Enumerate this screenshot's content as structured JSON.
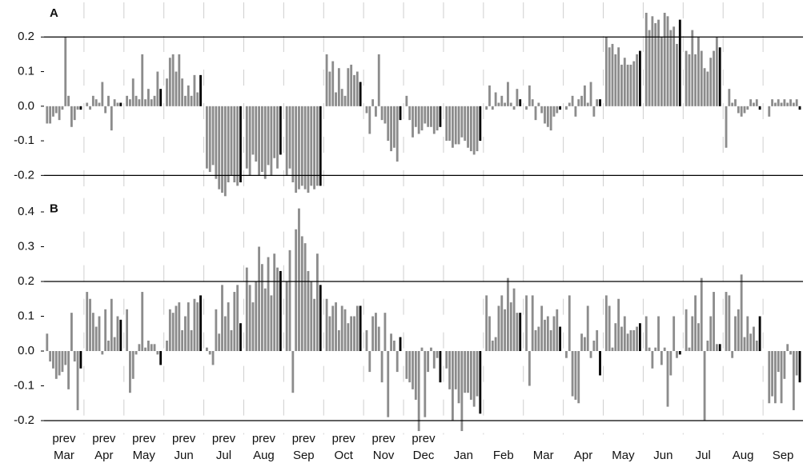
{
  "chart_data": [
    {
      "type": "bar",
      "title": "A",
      "ylim": [
        -0.25,
        0.3
      ],
      "yticks": [
        -0.2,
        -0.1,
        {
          "value": 0,
          "label": "0.0"
        },
        0.1,
        0.2
      ],
      "reference_lines": [
        -0.2,
        0.2
      ],
      "series": [
        {
          "color": "#8c8c8c",
          "values": [
            [
              -0.05,
              -0.05,
              -0.03,
              -0.02,
              -0.04,
              -0.01,
              0.2,
              0.03,
              -0.06,
              -0.04,
              -0.01
            ],
            [
              0.01,
              -0.01,
              0.03,
              0.02,
              0.01,
              0.07,
              -0.02,
              0.03,
              -0.07,
              0.02,
              0.01
            ],
            [
              0.03,
              0.02,
              0.08,
              0.03,
              0.02,
              0.15,
              0.02,
              0.05,
              0.02,
              0.03,
              0.1
            ],
            [
              0.08,
              0.14,
              0.15,
              0.1,
              0.15,
              0.08,
              0.03,
              0.06,
              0.03,
              0.09,
              0.04
            ],
            [
              -0.18,
              -0.19,
              -0.17,
              -0.21,
              -0.24,
              -0.25,
              -0.26,
              -0.22,
              -0.2,
              -0.22,
              -0.23
            ],
            [
              -0.18,
              -0.2,
              -0.14,
              -0.16,
              -0.2,
              -0.19,
              -0.21,
              -0.17,
              -0.2,
              -0.15,
              -0.18
            ],
            [
              -0.2,
              -0.18,
              -0.22,
              -0.25,
              -0.24,
              -0.23,
              -0.24,
              -0.25,
              -0.23,
              -0.24,
              -0.23
            ],
            [
              0.15,
              0.1,
              0.13,
              0.04,
              0.11,
              0.05,
              0.03,
              0.11,
              0.12,
              0.09,
              0.1
            ],
            [
              -0.02,
              -0.08,
              0.02,
              -0.03,
              0.15,
              -0.04,
              -0.05,
              -0.1,
              -0.13,
              -0.12,
              -0.16
            ],
            [
              0.03,
              -0.04,
              -0.09,
              -0.06,
              -0.08,
              -0.07,
              -0.05,
              -0.06,
              -0.06,
              -0.08,
              -0.07
            ],
            [
              -0.1,
              -0.1,
              -0.12,
              -0.11,
              -0.11,
              -0.09,
              -0.1,
              -0.12,
              -0.13,
              -0.14,
              -0.13
            ],
            [
              -0.01,
              0.06,
              -0.01,
              0.04,
              0.01,
              0.03,
              0.01,
              0.07,
              0.01,
              -0.01,
              0.05
            ],
            [
              -0.01,
              0.06,
              0.02,
              -0.04,
              0.01,
              -0.02,
              -0.05,
              -0.06,
              -0.07,
              -0.03,
              -0.02
            ],
            [
              -0.01,
              0.01,
              0.03,
              -0.03,
              0.02,
              0.03,
              0.06,
              0.01,
              0.07,
              -0.03,
              0.02
            ],
            [
              0.2,
              0.17,
              0.18,
              0.15,
              0.17,
              0.12,
              0.14,
              0.12,
              0.12,
              0.13,
              0.15
            ],
            [
              0.27,
              0.22,
              0.26,
              0.24,
              0.25,
              0.2,
              0.27,
              0.26,
              0.22,
              0.23,
              0.18
            ],
            [
              0.16,
              0.15,
              0.22,
              0.15,
              0.2,
              0.16,
              0.11,
              0.1,
              0.14,
              0.16,
              0.2
            ],
            [
              -0.12,
              0.05,
              0.01,
              0.02,
              -0.02,
              -0.03,
              -0.02,
              -0.01,
              0.02,
              0.01,
              0.02
            ],
            [
              0,
              -0.03,
              0.02,
              0.01,
              0.02,
              0.01,
              0.02,
              0.01,
              0.02,
              0.01,
              0.02
            ]
          ]
        },
        {
          "color": "#000000",
          "values": [
            -0.01,
            0.01,
            0.05,
            0.09,
            -0.22,
            -0.14,
            -0.23,
            0.07,
            -0.04,
            -0.06,
            -0.1,
            0.02,
            -0.01,
            0.02,
            0.16,
            0.25,
            0.17,
            -0.01,
            -0.01
          ]
        }
      ]
    },
    {
      "type": "bar",
      "title": "B",
      "ylim": [
        -0.24,
        0.44
      ],
      "yticks": [
        -0.2,
        -0.1,
        {
          "value": 0,
          "label": "0.0"
        },
        0.1,
        0.2,
        0.3,
        0.4
      ],
      "reference_lines": [
        -0.2,
        0.2
      ],
      "series": [
        {
          "color": "#8c8c8c",
          "values": [
            [
              0.05,
              -0.03,
              -0.05,
              -0.08,
              -0.07,
              -0.06,
              -0.04,
              -0.11,
              0.11,
              -0.03,
              -0.17
            ],
            [
              0.17,
              0.15,
              0.11,
              0.07,
              0.1,
              -0.01,
              0.12,
              0.03,
              0.15,
              0.04,
              0.1
            ],
            [
              0.12,
              -0.12,
              -0.08,
              -0.01,
              0.02,
              0.17,
              0.01,
              0.03,
              0.02,
              0.02,
              -0.01
            ],
            [
              0.03,
              0.12,
              0.11,
              0.13,
              0.14,
              0.06,
              0.1,
              0.14,
              0.06,
              0.15,
              0.14
            ],
            [
              0.01,
              -0.01,
              -0.04,
              0.12,
              0.05,
              0.19,
              0.1,
              0.14,
              0.06,
              0.17,
              0.19
            ],
            [
              0.24,
              0.19,
              0.14,
              0.2,
              0.3,
              0.25,
              0.18,
              0.27,
              0.16,
              0.28,
              0.24
            ],
            [
              0.2,
              0.29,
              -0.12,
              0.35,
              0.41,
              0.33,
              0.31,
              0.23,
              0.2,
              0.15,
              0.28
            ],
            [
              0.15,
              0.1,
              0.13,
              0.14,
              0.06,
              0.13,
              0.12,
              0.08,
              0.1,
              0.1,
              0.13
            ],
            [
              0.06,
              -0.06,
              0.1,
              0.11,
              0.07,
              -0.09,
              0.11,
              -0.19,
              0.05,
              0.03,
              -0.06
            ],
            [
              -0.08,
              -0.09,
              -0.11,
              -0.14,
              -0.23,
              0.01,
              -0.19,
              -0.06,
              0.01,
              -0.05,
              -0.02
            ],
            [
              -0.05,
              -0.11,
              -0.2,
              -0.11,
              -0.15,
              -0.23,
              -0.12,
              -0.12,
              -0.14,
              -0.16,
              -0.13
            ],
            [
              0.16,
              0.1,
              0.03,
              0.04,
              0.13,
              0.16,
              0.12,
              0.21,
              0.14,
              0.18,
              0.11
            ],
            [
              0.16,
              -0.1,
              0.16,
              0.06,
              0.07,
              0.13,
              0.09,
              0.1,
              0.06,
              0.1,
              0.12
            ],
            [
              -0.02,
              0.16,
              -0.13,
              -0.14,
              -0.15,
              0.05,
              0.04,
              0.13,
              -0.02,
              0.03,
              0.06
            ],
            [
              0.16,
              0.13,
              0.01,
              0.08,
              0.15,
              0.07,
              0.1,
              0.05,
              0.06,
              0.06,
              0.07
            ],
            [
              0.1,
              0.01,
              -0.05,
              0.01,
              0.1,
              -0.04,
              0.01,
              -0.16,
              -0.07,
              0.1,
              -0.02
            ],
            [
              0.12,
              0.01,
              0.1,
              0.16,
              0.08,
              0.21,
              -0.2,
              0.03,
              0.1,
              0.17,
              0.02
            ],
            [
              0.17,
              0.16,
              -0.02,
              0.1,
              0.12,
              0.22,
              0.04,
              0.1,
              0.05,
              0.07,
              0.03
            ],
            [
              0,
              -0.15,
              -0.13,
              -0.15,
              -0.06,
              -0.15,
              -0.08,
              0.02,
              -0.01,
              -0.17,
              -0.07
            ]
          ]
        },
        {
          "color": "#000000",
          "values": [
            -0.05,
            0.09,
            -0.04,
            0.16,
            0.08,
            0.23,
            0.19,
            0.13,
            0.04,
            -0.09,
            -0.18,
            0.11,
            0.07,
            -0.07,
            0.08,
            -0.01,
            0.02,
            0.1,
            -0.09
          ]
        }
      ],
      "x_labels": [
        [
          "prev",
          "Mar"
        ],
        [
          "prev",
          "Apr"
        ],
        [
          "prev",
          "May"
        ],
        [
          "prev",
          "Jun"
        ],
        [
          "prev",
          "Jul"
        ],
        [
          "prev",
          "Aug"
        ],
        [
          "prev",
          "Sep"
        ],
        [
          "prev",
          "Oct"
        ],
        [
          "prev",
          "Nov"
        ],
        [
          "prev",
          "Dec"
        ],
        [
          "Jan"
        ],
        [
          "Feb"
        ],
        [
          "Mar"
        ],
        [
          "Apr"
        ],
        [
          "May"
        ],
        [
          "Jun"
        ],
        [
          "Jul"
        ],
        [
          "Aug"
        ],
        [
          "Sep"
        ]
      ]
    }
  ]
}
